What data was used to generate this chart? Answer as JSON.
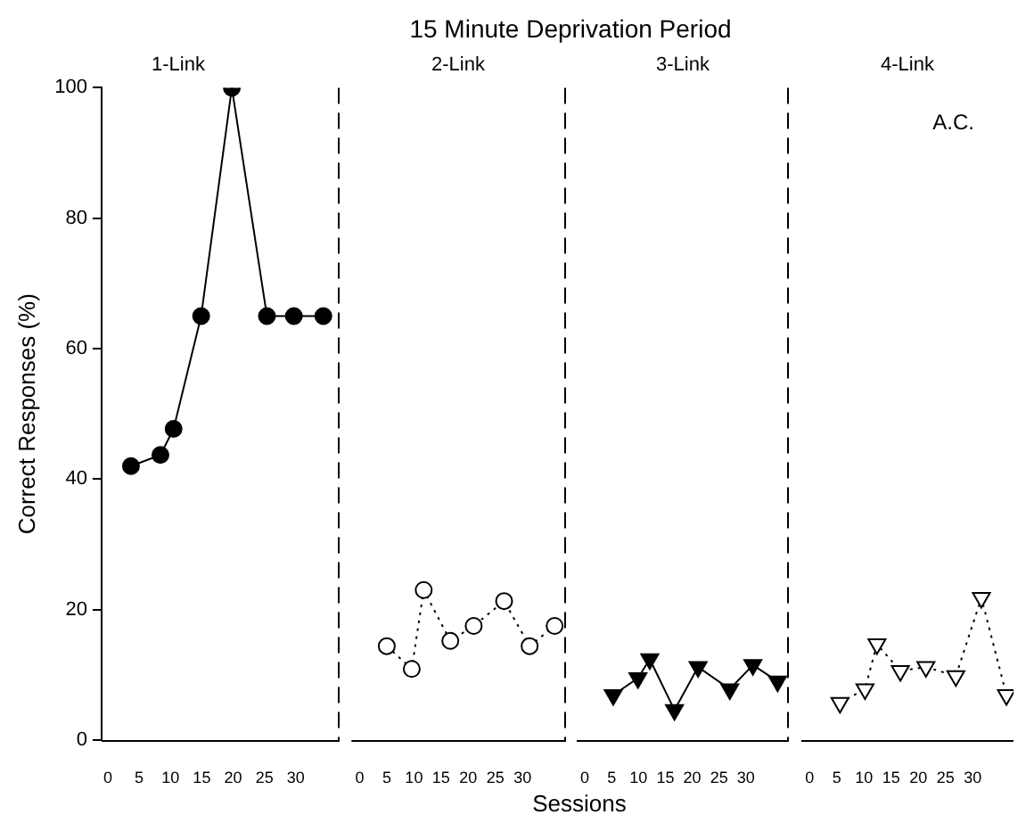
{
  "chart_data": [
    {
      "type": "line",
      "subtitle": "1-Link",
      "ylabel": "Correct Responses (%)",
      "xlim": [
        -1,
        37
      ],
      "xticks": [
        0,
        5,
        10,
        15,
        20,
        25,
        30
      ],
      "ylim": [
        0,
        100
      ],
      "yticks": [
        0,
        20,
        40,
        60,
        80,
        100
      ],
      "grid": false,
      "legend": false,
      "marker": "circle",
      "line_style": "solid",
      "series": [
        {
          "color": "#000000",
          "x": [
            3.7,
            8.4,
            10.5,
            14.9,
            19.8,
            25.4,
            29.7,
            34.4
          ],
          "values": [
            42,
            43.7,
            47.7,
            65,
            100,
            65,
            65,
            65
          ]
        }
      ]
    },
    {
      "type": "line",
      "title": "15 Minute Deprivation Period",
      "xlabel": "Sessions",
      "subtitle": "2-Link",
      "xlim": [
        -1.5,
        38
      ],
      "xticks": [
        0,
        5,
        10,
        15,
        20,
        25,
        30
      ],
      "ylim": [
        0,
        100
      ],
      "tick_labels": "x",
      "grid": false,
      "legend": false,
      "marker": "circle",
      "line_style": "dotted",
      "series": [
        {
          "color": "#000000",
          "x": [
            5,
            9.6,
            11.8,
            16.7,
            21,
            26.6,
            31.3,
            35.9
          ],
          "values": [
            14.4,
            10.9,
            23,
            15.2,
            17.5,
            21.3,
            14.4,
            17.5
          ]
        }
      ]
    },
    {
      "type": "line",
      "subtitle": "3-Link",
      "xlim": [
        -1.5,
        38
      ],
      "xticks": [
        0,
        5,
        10,
        15,
        20,
        25,
        30
      ],
      "ylim": [
        0,
        100
      ],
      "tick_labels": "x",
      "grid": false,
      "legend": false,
      "marker": "triangle",
      "line_style": "solid",
      "series": [
        {
          "color": "#000000",
          "x": [
            5.3,
            9.9,
            12.1,
            16.7,
            21.1,
            27,
            31.3,
            35.9
          ],
          "values": [
            6.9,
            9.5,
            12.4,
            4.6,
            11.2,
            7.8,
            11.5,
            9
          ]
        }
      ]
    },
    {
      "type": "line",
      "subtitle": "4-Link",
      "xlim": [
        -1.5,
        37.5
      ],
      "xticks": [
        0,
        5,
        10,
        15,
        20,
        25,
        30
      ],
      "ylim": [
        0,
        100
      ],
      "tick_labels": "x",
      "grid": false,
      "legend": false,
      "marker": "triangle",
      "line_style": "dotted",
      "annotations": [
        "A.C."
      ],
      "series": [
        {
          "color": "#000000",
          "x": [
            5.6,
            10.2,
            12.4,
            16.7,
            21.4,
            26.9,
            31.6,
            36.2
          ],
          "values": [
            5.7,
            7.8,
            14.7,
            10.6,
            11.2,
            9.8,
            21.8,
            6.9
          ]
        }
      ]
    }
  ]
}
